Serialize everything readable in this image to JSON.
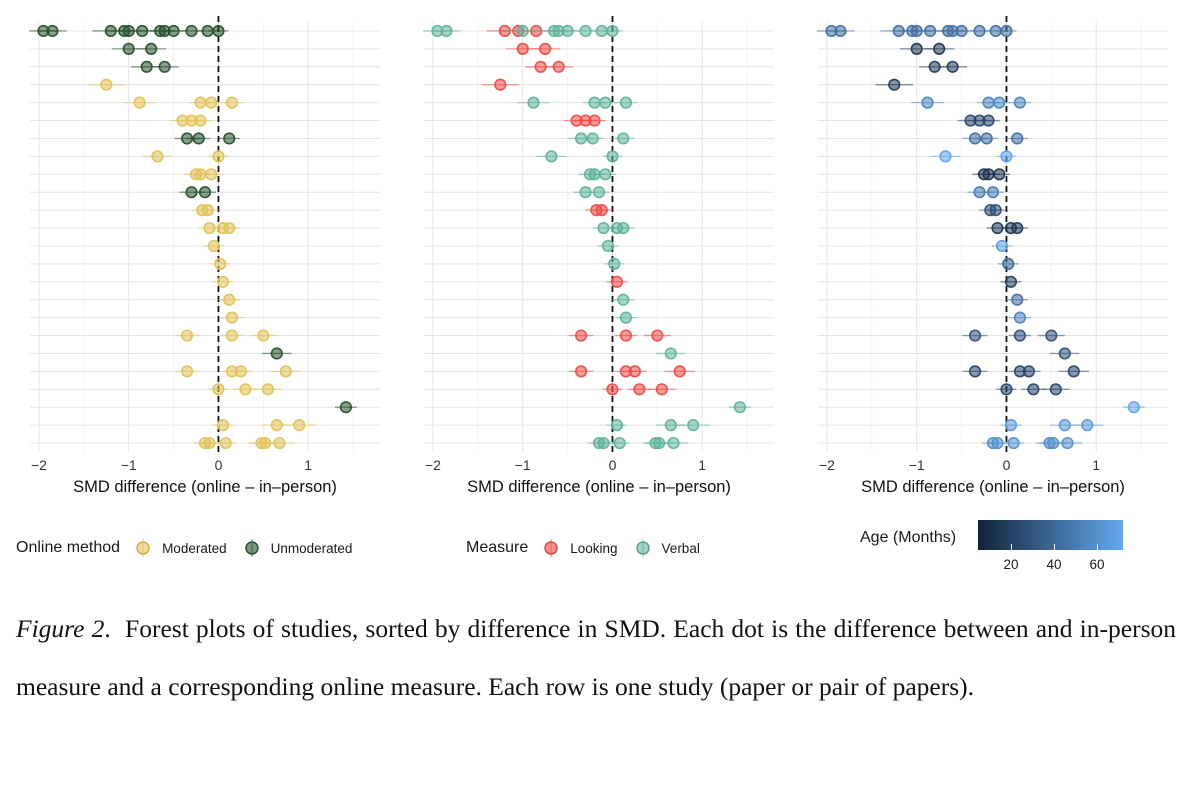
{
  "chart_data": [
    {
      "type": "scatter",
      "panel": "Online method",
      "xlabel": "SMD difference (online – in–person)",
      "xlim": [
        -2.1,
        1.8
      ],
      "xticks": [
        -2,
        -1,
        0,
        1
      ],
      "reference_line_x": 0,
      "color_by": "Online method",
      "legend": {
        "title": "Online method",
        "entries": [
          {
            "label": "Moderated",
            "color": "#e0c25a"
          },
          {
            "label": "Unmoderated",
            "color": "#27512c"
          }
        ]
      },
      "points": [
        {
          "row": 1,
          "x": -1.85,
          "group": "Unmoderated"
        },
        {
          "row": 1,
          "x": -1.95,
          "group": "Unmoderated"
        },
        {
          "row": 1,
          "x": -1.2,
          "group": "Unmoderated"
        },
        {
          "row": 1,
          "x": -1.05,
          "group": "Unmoderated"
        },
        {
          "row": 1,
          "x": -0.85,
          "group": "Unmoderated"
        },
        {
          "row": 1,
          "x": -0.6,
          "group": "Unmoderated"
        },
        {
          "row": 1,
          "x": -0.5,
          "group": "Unmoderated"
        },
        {
          "row": 1,
          "x": -0.3,
          "group": "Unmoderated"
        },
        {
          "row": 1,
          "x": -0.12,
          "group": "Unmoderated"
        },
        {
          "row": 1,
          "x": 0.0,
          "group": "Unmoderated"
        },
        {
          "row": 1,
          "x": -1.0,
          "group": "Unmoderated"
        },
        {
          "row": 1,
          "x": -0.65,
          "group": "Unmoderated"
        },
        {
          "row": 2,
          "x": -1.0,
          "group": "Unmoderated"
        },
        {
          "row": 2,
          "x": -0.75,
          "group": "Unmoderated"
        },
        {
          "row": 3,
          "x": -0.8,
          "group": "Unmoderated"
        },
        {
          "row": 3,
          "x": -0.6,
          "group": "Unmoderated"
        },
        {
          "row": 4,
          "x": -1.25,
          "group": "Moderated"
        },
        {
          "row": 5,
          "x": -0.88,
          "group": "Moderated"
        },
        {
          "row": 5,
          "x": -0.2,
          "group": "Moderated"
        },
        {
          "row": 5,
          "x": -0.08,
          "group": "Moderated"
        },
        {
          "row": 5,
          "x": 0.15,
          "group": "Moderated"
        },
        {
          "row": 6,
          "x": -0.4,
          "group": "Moderated"
        },
        {
          "row": 6,
          "x": -0.3,
          "group": "Moderated"
        },
        {
          "row": 6,
          "x": -0.2,
          "group": "Moderated"
        },
        {
          "row": 7,
          "x": -0.35,
          "group": "Unmoderated"
        },
        {
          "row": 7,
          "x": -0.22,
          "group": "Unmoderated"
        },
        {
          "row": 7,
          "x": 0.12,
          "group": "Unmoderated"
        },
        {
          "row": 8,
          "x": -0.68,
          "group": "Moderated"
        },
        {
          "row": 8,
          "x": 0.0,
          "group": "Moderated"
        },
        {
          "row": 9,
          "x": -0.25,
          "group": "Moderated"
        },
        {
          "row": 9,
          "x": -0.2,
          "group": "Moderated"
        },
        {
          "row": 9,
          "x": -0.08,
          "group": "Moderated"
        },
        {
          "row": 10,
          "x": -0.3,
          "group": "Unmoderated"
        },
        {
          "row": 10,
          "x": -0.15,
          "group": "Unmoderated"
        },
        {
          "row": 11,
          "x": -0.18,
          "group": "Moderated"
        },
        {
          "row": 11,
          "x": -0.12,
          "group": "Moderated"
        },
        {
          "row": 12,
          "x": -0.1,
          "group": "Moderated"
        },
        {
          "row": 12,
          "x": 0.05,
          "group": "Moderated"
        },
        {
          "row": 12,
          "x": 0.12,
          "group": "Moderated"
        },
        {
          "row": 13,
          "x": -0.05,
          "group": "Moderated"
        },
        {
          "row": 14,
          "x": 0.02,
          "group": "Moderated"
        },
        {
          "row": 15,
          "x": 0.05,
          "group": "Moderated"
        },
        {
          "row": 16,
          "x": 0.12,
          "group": "Moderated"
        },
        {
          "row": 17,
          "x": 0.15,
          "group": "Moderated"
        },
        {
          "row": 18,
          "x": -0.35,
          "group": "Moderated"
        },
        {
          "row": 18,
          "x": 0.15,
          "group": "Moderated"
        },
        {
          "row": 18,
          "x": 0.5,
          "group": "Moderated"
        },
        {
          "row": 19,
          "x": 0.65,
          "group": "Unmoderated"
        },
        {
          "row": 20,
          "x": -0.35,
          "group": "Moderated"
        },
        {
          "row": 20,
          "x": 0.15,
          "group": "Moderated"
        },
        {
          "row": 20,
          "x": 0.25,
          "group": "Moderated"
        },
        {
          "row": 20,
          "x": 0.75,
          "group": "Moderated"
        },
        {
          "row": 21,
          "x": 0.0,
          "group": "Moderated"
        },
        {
          "row": 21,
          "x": 0.3,
          "group": "Moderated"
        },
        {
          "row": 21,
          "x": 0.55,
          "group": "Moderated"
        },
        {
          "row": 22,
          "x": 1.42,
          "group": "Unmoderated"
        },
        {
          "row": 23,
          "x": 0.05,
          "group": "Moderated"
        },
        {
          "row": 23,
          "x": 0.65,
          "group": "Moderated"
        },
        {
          "row": 23,
          "x": 0.9,
          "group": "Moderated"
        },
        {
          "row": 24,
          "x": -0.15,
          "group": "Moderated"
        },
        {
          "row": 24,
          "x": -0.1,
          "group": "Moderated"
        },
        {
          "row": 24,
          "x": 0.08,
          "group": "Moderated"
        },
        {
          "row": 24,
          "x": 0.48,
          "group": "Moderated"
        },
        {
          "row": 24,
          "x": 0.52,
          "group": "Moderated"
        },
        {
          "row": 24,
          "x": 0.68,
          "group": "Moderated"
        }
      ]
    },
    {
      "type": "scatter",
      "panel": "Measure",
      "xlabel": "SMD difference (online – in–person)",
      "xlim": [
        -2.1,
        1.8
      ],
      "xticks": [
        -2,
        -1,
        0,
        1
      ],
      "reference_line_x": 0,
      "color_by": "Measure",
      "legend": {
        "title": "Measure",
        "entries": [
          {
            "label": "Looking",
            "color": "#ef4a46"
          },
          {
            "label": "Verbal",
            "color": "#5fb39d"
          }
        ]
      }
    },
    {
      "type": "scatter",
      "panel": "Age (Months)",
      "xlabel": "SMD difference (online – in–person)",
      "xlim": [
        -2.1,
        1.8
      ],
      "xticks": [
        -2,
        -1,
        0,
        1
      ],
      "reference_line_x": 0,
      "color_by": "Age (Months)",
      "colorbar": {
        "title": "Age (Months)",
        "ticks": [
          20,
          40,
          60
        ],
        "range": [
          8,
          72
        ],
        "low_color": "#12233a",
        "high_color": "#63a8ee"
      }
    }
  ],
  "measure_by_row": {
    "2": "Looking",
    "3": "Looking",
    "4": "Looking",
    "6": "Looking",
    "11": "Looking",
    "15": "Looking",
    "18": "Looking",
    "20": "Looking",
    "21": "Looking",
    "default": "Verbal",
    "row1_looking_x": [
      -1.2,
      -1.05,
      -0.85
    ]
  },
  "age_by_row": {
    "1": 45,
    "2": 18,
    "3": 20,
    "4": 20,
    "5": 55,
    "6": 25,
    "7": 45,
    "8": 70,
    "9": 15,
    "10": 50,
    "11": 30,
    "12": 18,
    "13": 68,
    "14": 40,
    "15": 20,
    "16": 45,
    "17": 55,
    "18": 30,
    "19": 30,
    "20": 25,
    "21": 25,
    "22": 70,
    "23": 65,
    "24": 60
  },
  "tick_labels": [
    "−2",
    "−1",
    "0",
    "1"
  ],
  "legends": {
    "method": {
      "title": "Online method",
      "items": [
        "Moderated",
        "Unmoderated"
      ]
    },
    "measure": {
      "title": "Measure",
      "items": [
        "Looking",
        "Verbal"
      ]
    },
    "age": {
      "title": "Age (Months)",
      "ticks": [
        "20",
        "40",
        "60"
      ]
    }
  },
  "caption": {
    "label": "Figure 2",
    "text": "Forest plots of studies, sorted by difference in SMD. Each dot is the difference between and in-person measure and a corresponding online measure. Each row is one study (paper or pair of papers)."
  }
}
